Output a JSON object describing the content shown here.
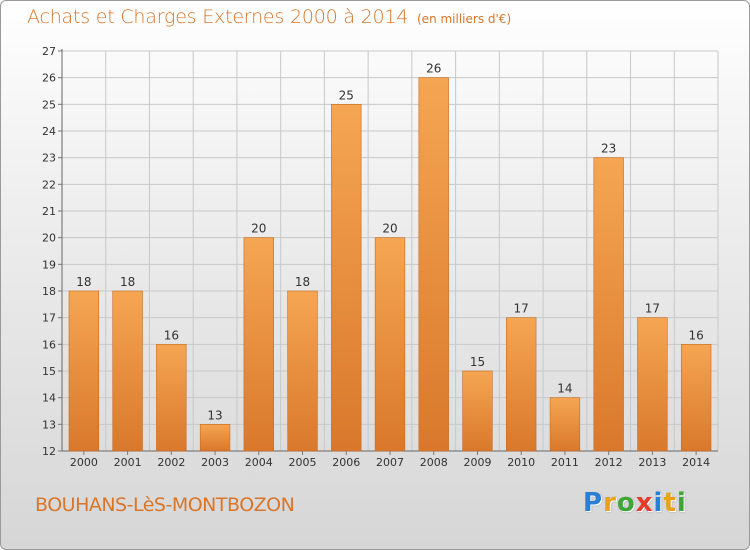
{
  "title": "Achats et Charges Externes 2000 à 2014",
  "subtitle": "(en milliers d'€)",
  "commune": "BOUHANS-LèS-MONTBOZON",
  "logo": {
    "letters": [
      "P",
      "r",
      "o",
      "x",
      "i",
      "t",
      "i"
    ],
    "colors": [
      "#2a7fd4",
      "#e8a21a",
      "#3fa535",
      "#e53b2c",
      "#2a7fd4",
      "#e8a21a",
      "#3fa535"
    ]
  },
  "colors": {
    "accent": "#d9762a",
    "bar_top": "#f5a652",
    "bar_bottom": "#d9782c",
    "grid": "#c8c8c8"
  },
  "chart_data": {
    "type": "bar",
    "categories": [
      "2000",
      "2001",
      "2002",
      "2003",
      "2004",
      "2005",
      "2006",
      "2007",
      "2008",
      "2009",
      "2010",
      "2011",
      "2012",
      "2013",
      "2014"
    ],
    "values": [
      18,
      18,
      16,
      13,
      20,
      18,
      25,
      20,
      26,
      15,
      17,
      14,
      23,
      17,
      16
    ],
    "ylim": [
      12,
      27
    ],
    "yticks": [
      12,
      13,
      14,
      15,
      16,
      17,
      18,
      19,
      20,
      21,
      22,
      23,
      24,
      25,
      26,
      27
    ],
    "grid": true,
    "xlabel": "",
    "ylabel": ""
  }
}
